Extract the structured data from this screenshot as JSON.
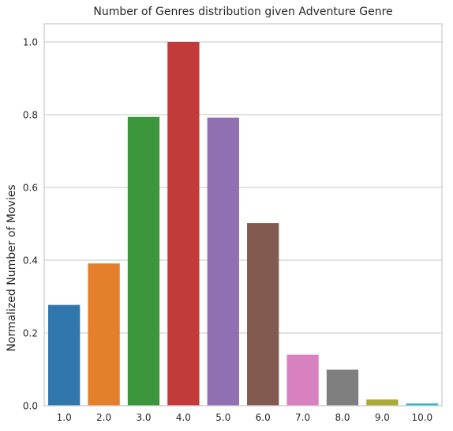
{
  "chart_data": {
    "type": "bar",
    "title": "Number of Genres distribution given Adventure Genre",
    "xlabel": "",
    "ylabel": "Normalized Number of Movies",
    "categories": [
      "1.0",
      "2.0",
      "3.0",
      "4.0",
      "5.0",
      "6.0",
      "7.0",
      "8.0",
      "9.0",
      "10.0"
    ],
    "values": [
      0.277,
      0.391,
      0.794,
      1.0,
      0.792,
      0.502,
      0.14,
      0.099,
      0.017,
      0.006
    ],
    "colors": [
      "#2f77ad",
      "#e47f2b",
      "#3b963c",
      "#c23a3a",
      "#9170b2",
      "#835a4f",
      "#d782bf",
      "#7f7f7f",
      "#aaab35",
      "#24b9c9"
    ],
    "ylim": [
      0,
      1.05
    ],
    "yticks": [
      0.0,
      0.2,
      0.4,
      0.6,
      0.8,
      1.0
    ],
    "ytick_labels": [
      "0.0",
      "0.2",
      "0.4",
      "0.6",
      "0.8",
      "1.0"
    ],
    "grid": true,
    "legend": "none"
  }
}
